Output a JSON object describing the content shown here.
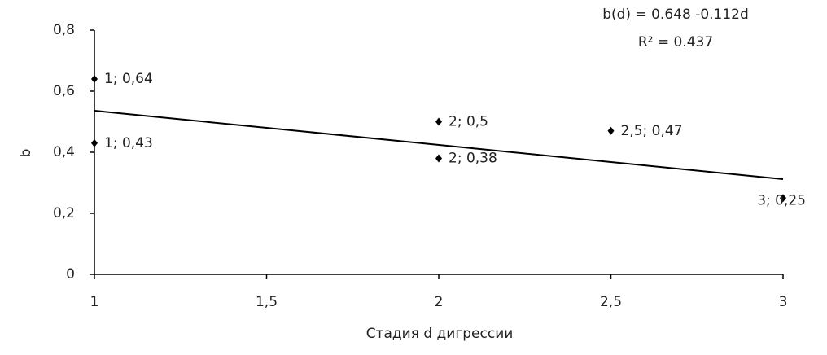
{
  "chart_data": {
    "type": "scatter",
    "x_label": "Стадия d  дигрессии",
    "y_label": "b",
    "x": [
      1,
      1,
      2,
      2,
      2.5,
      3
    ],
    "values": [
      0.64,
      0.43,
      0.5,
      0.38,
      0.47,
      0.25
    ],
    "value_labels": [
      "1; 0,64",
      "1; 0,43",
      "2; 0,5",
      "2; 0,38",
      "2,5; 0,47",
      "3; 0,25"
    ],
    "color": "#000000",
    "trendline": {
      "x": [
        1,
        3
      ],
      "values": [
        0.536,
        0.312
      ],
      "color": "#000000"
    },
    "equation": "b(d) = 0.648 -0.112d",
    "r_squared": "R² = 0.437",
    "xlim": [
      1,
      3
    ],
    "ylim": [
      0,
      0.8
    ],
    "xticks": [
      1,
      {
        "value": 1.5,
        "label": "1,5"
      },
      2,
      {
        "value": 2.5,
        "label": "2,5"
      },
      3
    ],
    "yticks": [
      0,
      {
        "value": 0.2,
        "label": "0,2"
      },
      {
        "value": 0.4,
        "label": "0,4"
      },
      {
        "value": 0.6,
        "label": "0,6"
      },
      {
        "value": 0.8,
        "label": "0,8"
      }
    ]
  }
}
